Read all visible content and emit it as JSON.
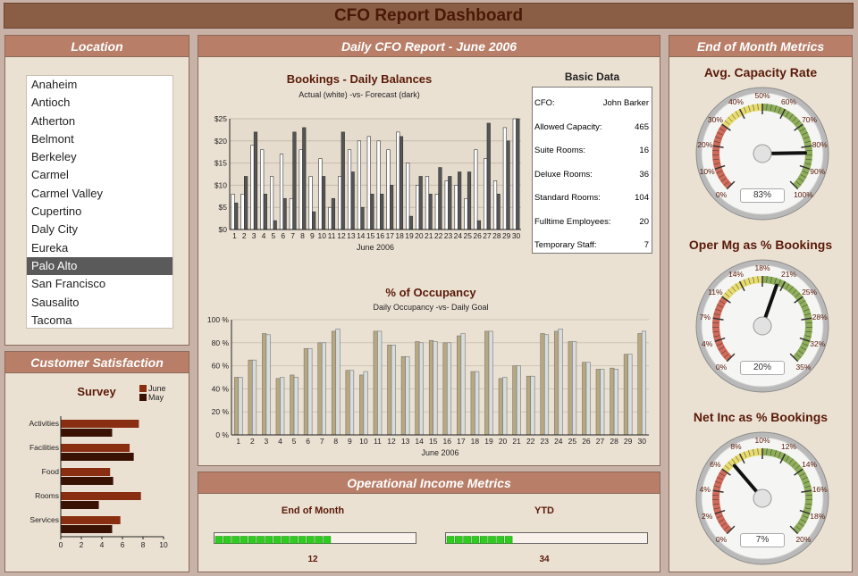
{
  "title": "CFO Report Dashboard",
  "location": {
    "header": "Location",
    "items": [
      "Anaheim",
      "Antioch",
      "Atherton",
      "Belmont",
      "Berkeley",
      "Carmel",
      "Carmel Valley",
      "Cupertino",
      "Daly City",
      "Eureka",
      "Palo Alto",
      "San Francisco",
      "Sausalito",
      "Tacoma"
    ],
    "selected": "Palo Alto"
  },
  "satisfaction": {
    "header": "Customer Satisfaction",
    "chart_data": {
      "type": "bar",
      "orientation": "horizontal",
      "title": "Survey",
      "categories": [
        "Activities",
        "Facilities",
        "Food",
        "Rooms",
        "Services"
      ],
      "series": [
        {
          "name": "June",
          "values": [
            7.6,
            6.7,
            4.8,
            7.8,
            5.8
          ],
          "color": "#8a2e12"
        },
        {
          "name": "May",
          "values": [
            5.0,
            7.1,
            5.1,
            3.7,
            5.0
          ],
          "color": "#3a1204"
        }
      ],
      "xlim": [
        0,
        10
      ],
      "xticks": [
        "0",
        "2",
        "4",
        "6",
        "8",
        "10"
      ],
      "legend": "top-right"
    }
  },
  "daily": {
    "header": "Daily CFO Report - June 2006",
    "bookings": {
      "chart_data": {
        "type": "bar",
        "title": "Bookings - Daily Balances",
        "subtitle": "Actual (white) -vs- Forecast (dark)",
        "xlabel": "June 2006",
        "categories": [
          "1",
          "2",
          "3",
          "4",
          "5",
          "6",
          "7",
          "8",
          "9",
          "10",
          "11",
          "12",
          "13",
          "14",
          "15",
          "16",
          "17",
          "18",
          "19",
          "20",
          "21",
          "22",
          "23",
          "24",
          "25",
          "26",
          "27",
          "28",
          "29",
          "30"
        ],
        "series": [
          {
            "values": [
              8,
              8,
              19,
              18,
              12,
              17,
              7,
              18,
              12,
              16,
              5,
              12,
              18,
              20,
              21,
              20,
              18,
              22,
              15,
              10,
              12,
              8,
              11,
              10,
              7,
              18,
              16,
              11,
              23,
              25
            ],
            "color": "#ffffff"
          },
          {
            "values": [
              6,
              12,
              22,
              8,
              2,
              7,
              22,
              23,
              4,
              12,
              7,
              22,
              13,
              5,
              8,
              8,
              10,
              21,
              3,
              12,
              8,
              14,
              12,
              13,
              13,
              2,
              24,
              8,
              20,
              25
            ],
            "color": "#555555"
          }
        ],
        "ylim": [
          0,
          25
        ],
        "yticks": [
          "$0",
          "$5",
          "$10",
          "$15",
          "$20",
          "$25"
        ]
      }
    },
    "basic": {
      "title": "Basic Data",
      "rows": [
        {
          "label": "CFO:",
          "value": "John Barker"
        },
        {
          "label": "Allowed Capacity:",
          "value": "465"
        },
        {
          "label": "Suite Rooms:",
          "value": "16"
        },
        {
          "label": "Deluxe Rooms:",
          "value": "36"
        },
        {
          "label": "Standard Rooms:",
          "value": "104"
        },
        {
          "label": "Fulltime Employees:",
          "value": "20"
        },
        {
          "label": "Temporary Staff:",
          "value": "7"
        }
      ]
    },
    "occupancy": {
      "chart_data": {
        "type": "bar",
        "title": "% of Occupancy",
        "subtitle": "Daily Occupancy -vs- Daily Goal",
        "xlabel": "June 2006",
        "categories": [
          "1",
          "2",
          "3",
          "4",
          "5",
          "6",
          "7",
          "8",
          "9",
          "10",
          "11",
          "12",
          "13",
          "14",
          "15",
          "16",
          "17",
          "18",
          "19",
          "20",
          "21",
          "22",
          "23",
          "24",
          "25",
          "26",
          "27",
          "28",
          "29",
          "30"
        ],
        "series": [
          {
            "values": [
              50,
              65,
              88,
              49,
              52,
              75,
              80,
              90,
              56,
              52,
              90,
              78,
              68,
              81,
              82,
              80,
              86,
              55,
              90,
              49,
              60,
              51,
              88,
              90,
              81,
              63,
              57,
              58,
              70,
              88
            ],
            "color": "#b8a880"
          },
          {
            "values": [
              50,
              65,
              87,
              50,
              50,
              75,
              80,
              92,
              56,
              55,
              90,
              78,
              68,
              80,
              81,
              80,
              88,
              55,
              90,
              50,
              60,
              51,
              87,
              92,
              81,
              63,
              57,
              57,
              70,
              90
            ],
            "color": "#d7dcdc"
          }
        ],
        "ylim": [
          0,
          100
        ],
        "yticks": [
          "0 %",
          "20 %",
          "40 %",
          "60 %",
          "80 %",
          "100 %"
        ]
      }
    }
  },
  "income": {
    "header": "Operational Income Metrics",
    "eom": {
      "title": "End of Month",
      "value": "12",
      "fraction": 0.6
    },
    "ytd": {
      "title": "YTD",
      "value": "34",
      "fraction": 0.35
    }
  },
  "metrics": {
    "header": "End of Month Metrics",
    "gauges": [
      {
        "title": "Avg. Capacity Rate",
        "display": "83%",
        "value": 83,
        "min": 0,
        "max": 100,
        "labels": [
          "0%",
          "10%",
          "20%",
          "30%",
          "40%",
          "50%",
          "60%",
          "70%",
          "80%",
          "90%",
          "100%"
        ]
      },
      {
        "title": "Oper Mg as % Bookings",
        "display": "20%",
        "value": 20,
        "min": 0,
        "max": 35,
        "labels": [
          "0%",
          "4%",
          "7%",
          "11%",
          "14%",
          "18%",
          "21%",
          "25%",
          "28%",
          "32%",
          "35%"
        ]
      },
      {
        "title": "Net Inc as % Bookings",
        "display": "7%",
        "value": 7,
        "min": 0,
        "max": 20,
        "labels": [
          "0%",
          "2%",
          "4%",
          "6%",
          "8%",
          "10%",
          "12%",
          "14%",
          "16%",
          "18%",
          "20%"
        ]
      }
    ]
  }
}
